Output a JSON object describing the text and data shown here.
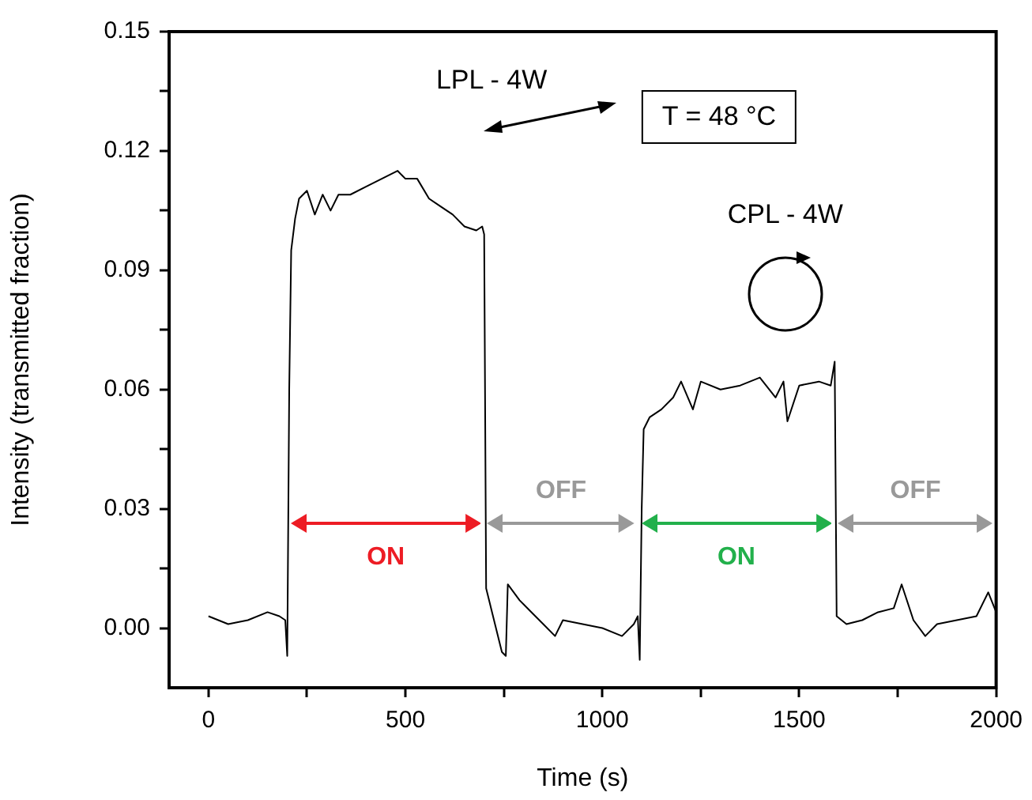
{
  "chart_data": {
    "type": "line",
    "xlabel": "Time (s)",
    "ylabel": "Intensity (transmitted fraction)",
    "x": [
      0,
      50,
      100,
      150,
      180,
      195,
      200,
      205,
      210,
      220,
      230,
      250,
      270,
      290,
      310,
      330,
      360,
      400,
      440,
      480,
      500,
      530,
      560,
      590,
      620,
      650,
      680,
      695,
      700,
      705,
      720,
      745,
      755,
      760,
      790,
      820,
      850,
      880,
      900,
      950,
      1000,
      1050,
      1080,
      1090,
      1095,
      1100,
      1105,
      1120,
      1150,
      1180,
      1200,
      1230,
      1250,
      1300,
      1350,
      1400,
      1440,
      1460,
      1470,
      1500,
      1550,
      1580,
      1590,
      1595,
      1620,
      1660,
      1700,
      1740,
      1760,
      1790,
      1820,
      1850,
      1900,
      1950,
      1980,
      2000
    ],
    "series": [
      {
        "color": "#000000",
        "values": [
          0.003,
          0.001,
          0.002,
          0.004,
          0.003,
          0.002,
          -0.007,
          0.06,
          0.095,
          0.103,
          0.108,
          0.11,
          0.104,
          0.109,
          0.105,
          0.109,
          0.109,
          0.111,
          0.113,
          0.115,
          0.113,
          0.113,
          0.108,
          0.106,
          0.104,
          0.101,
          0.1,
          0.101,
          0.099,
          0.01,
          0.004,
          -0.006,
          -0.007,
          0.011,
          0.007,
          0.004,
          0.001,
          -0.002,
          0.002,
          0.001,
          0.0,
          -0.002,
          0.001,
          0.003,
          -0.008,
          0.03,
          0.05,
          0.053,
          0.055,
          0.058,
          0.062,
          0.055,
          0.062,
          0.06,
          0.061,
          0.063,
          0.058,
          0.062,
          0.052,
          0.061,
          0.062,
          0.061,
          0.067,
          0.003,
          0.001,
          0.002,
          0.004,
          0.005,
          0.011,
          0.002,
          -0.002,
          0.001,
          0.002,
          0.003,
          0.009,
          0.004
        ]
      }
    ],
    "xlim": [
      -100,
      2000
    ],
    "xticks": [
      0,
      {
        "value": 250,
        "label": null
      },
      500,
      {
        "value": 750,
        "label": null
      },
      1000,
      {
        "value": 1250,
        "label": null
      },
      1500,
      {
        "value": 1750,
        "label": null
      },
      2000
    ],
    "ylim": [
      -0.015,
      0.15
    ],
    "yticks": [
      {
        "value": 0,
        "label": "0.00"
      },
      {
        "value": 0.015,
        "label": null
      },
      {
        "value": 0.03,
        "label": "0.03"
      },
      {
        "value": 0.045,
        "label": null
      },
      {
        "value": 0.06,
        "label": "0.06"
      },
      {
        "value": 0.075,
        "label": null
      },
      {
        "value": 0.09,
        "label": "0.09"
      },
      {
        "value": 0.105,
        "label": null
      },
      {
        "value": 0.12,
        "label": "0.12"
      },
      {
        "value": 0.135,
        "label": null
      },
      {
        "value": 0.15,
        "label": "0.15"
      }
    ],
    "grid": false,
    "legend": false,
    "marker": "none",
    "line_style": "solid",
    "annotations": [
      "LPL - 4W",
      "T = 48 °C",
      "CPL - 4W",
      "ON",
      "OFF",
      "ON",
      "OFF"
    ]
  }
}
